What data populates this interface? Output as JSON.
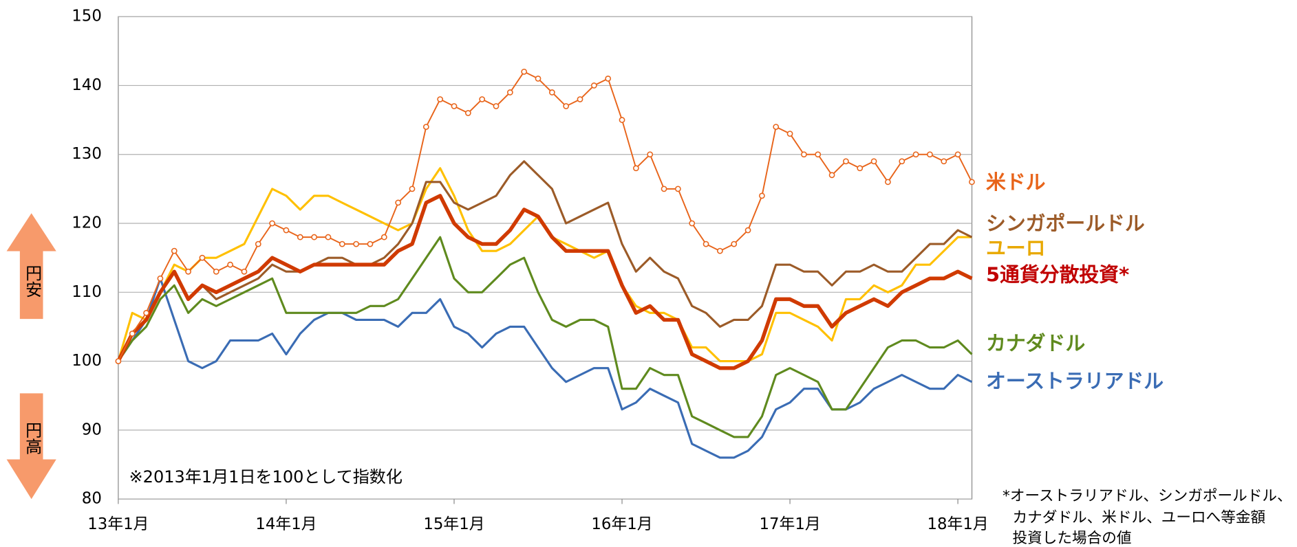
{
  "chart_data": {
    "type": "line",
    "x": [
      "2013-01",
      "2013-02",
      "2013-03",
      "2013-04",
      "2013-05",
      "2013-06",
      "2013-07",
      "2013-08",
      "2013-09",
      "2013-10",
      "2013-11",
      "2013-12",
      "2014-01",
      "2014-02",
      "2014-03",
      "2014-04",
      "2014-05",
      "2014-06",
      "2014-07",
      "2014-08",
      "2014-09",
      "2014-10",
      "2014-11",
      "2014-12",
      "2015-01",
      "2015-02",
      "2015-03",
      "2015-04",
      "2015-05",
      "2015-06",
      "2015-07",
      "2015-08",
      "2015-09",
      "2015-10",
      "2015-11",
      "2015-12",
      "2016-01",
      "2016-02",
      "2016-03",
      "2016-04",
      "2016-05",
      "2016-06",
      "2016-07",
      "2016-08",
      "2016-09",
      "2016-10",
      "2016-11",
      "2016-12",
      "2017-01",
      "2017-02",
      "2017-03",
      "2017-04",
      "2017-05",
      "2017-06",
      "2017-07",
      "2017-08",
      "2017-09",
      "2017-10",
      "2017-11",
      "2017-12",
      "2018-01",
      "2018-02"
    ],
    "series": [
      {
        "name": "オーストラリアドル",
        "color": "#3a6cb4",
        "values": [
          100,
          103,
          106,
          112,
          106,
          100,
          99,
          100,
          103,
          103,
          103,
          104,
          101,
          104,
          106,
          107,
          107,
          106,
          106,
          106,
          105,
          107,
          107,
          109,
          105,
          104,
          102,
          104,
          105,
          105,
          102,
          99,
          97,
          98,
          99,
          99,
          93,
          94,
          96,
          95,
          94,
          88,
          87,
          86,
          86,
          87,
          89,
          93,
          94,
          96,
          96,
          93,
          93,
          94,
          96,
          97,
          98,
          97,
          96,
          96,
          98,
          97
        ]
      },
      {
        "name": "カナダドル",
        "color": "#5f8a1e",
        "values": [
          100,
          103,
          105,
          109,
          111,
          107,
          109,
          108,
          109,
          110,
          111,
          112,
          107,
          107,
          107,
          107,
          107,
          107,
          108,
          108,
          109,
          112,
          115,
          118,
          112,
          110,
          110,
          112,
          114,
          115,
          110,
          106,
          105,
          106,
          106,
          105,
          96,
          96,
          99,
          98,
          98,
          92,
          91,
          90,
          89,
          89,
          92,
          98,
          99,
          98,
          97,
          93,
          93,
          96,
          99,
          102,
          103,
          103,
          102,
          102,
          103,
          101
        ]
      },
      {
        "name": "ユーロ",
        "color": "#ffc000",
        "values": [
          100,
          107,
          106,
          110,
          114,
          113,
          115,
          115,
          116,
          117,
          121,
          125,
          124,
          122,
          124,
          124,
          123,
          122,
          121,
          120,
          119,
          120,
          125,
          128,
          124,
          119,
          116,
          116,
          117,
          119,
          121,
          118,
          117,
          116,
          115,
          116,
          111,
          108,
          107,
          107,
          106,
          102,
          102,
          100,
          100,
          100,
          101,
          107,
          107,
          106,
          105,
          103,
          109,
          109,
          111,
          110,
          111,
          114,
          114,
          116,
          118,
          118
        ]
      },
      {
        "name": "シンガポールドル",
        "color": "#9c5b28",
        "values": [
          100,
          104,
          106,
          110,
          113,
          109,
          111,
          109,
          110,
          111,
          112,
          114,
          113,
          113,
          114,
          115,
          115,
          114,
          114,
          115,
          117,
          120,
          126,
          126,
          123,
          122,
          123,
          124,
          127,
          129,
          127,
          125,
          120,
          121,
          122,
          123,
          117,
          113,
          115,
          113,
          112,
          108,
          107,
          105,
          106,
          106,
          108,
          114,
          114,
          113,
          113,
          111,
          113,
          113,
          114,
          113,
          113,
          115,
          117,
          117,
          119,
          118
        ]
      },
      {
        "name": "5通貨分散投資*",
        "color": "#d03a00",
        "values": [
          100,
          104,
          106,
          110,
          113,
          109,
          111,
          110,
          111,
          112,
          113,
          115,
          114,
          113,
          114,
          114,
          114,
          114,
          114,
          114,
          116,
          117,
          123,
          124,
          120,
          118,
          117,
          117,
          119,
          122,
          121,
          118,
          116,
          116,
          116,
          116,
          111,
          107,
          108,
          106,
          106,
          101,
          100,
          99,
          99,
          100,
          103,
          109,
          109,
          108,
          108,
          105,
          107,
          108,
          109,
          108,
          110,
          111,
          112,
          112,
          113,
          112
        ]
      },
      {
        "name": "米ドル",
        "color": "#e8641a",
        "values": [
          100,
          104,
          107,
          112,
          116,
          113,
          115,
          113,
          114,
          113,
          117,
          120,
          119,
          118,
          118,
          118,
          117,
          117,
          117,
          118,
          123,
          125,
          134,
          138,
          137,
          136,
          138,
          137,
          139,
          142,
          141,
          139,
          137,
          138,
          140,
          141,
          135,
          128,
          130,
          125,
          125,
          120,
          117,
          116,
          117,
          119,
          124,
          134,
          133,
          130,
          130,
          127,
          129,
          128,
          129,
          126,
          129,
          130,
          130,
          129,
          130,
          126
        ]
      }
    ],
    "ylim": [
      80,
      150
    ],
    "yticks": [
      80,
      90,
      100,
      110,
      120,
      130,
      140,
      150
    ],
    "xticks": [
      {
        "value": "2013-01",
        "label": "13年1月"
      },
      {
        "value": "2014-01",
        "label": "14年1月"
      },
      {
        "value": "2015-01",
        "label": "15年1月"
      },
      {
        "value": "2016-01",
        "label": "16年1月"
      },
      {
        "value": "2017-01",
        "label": "17年1月"
      },
      {
        "value": "2018-01",
        "label": "18年1月"
      }
    ],
    "grid": true,
    "annotations": {
      "up": "円安",
      "down": "円高",
      "base_note": "※2013年1月1日を100として指数化",
      "footnote": [
        "*オーストラリアドル、シンガポールドル、",
        "カナダドル、米ドル、ユーロへ等金額",
        "投資した場合の値"
      ]
    }
  }
}
